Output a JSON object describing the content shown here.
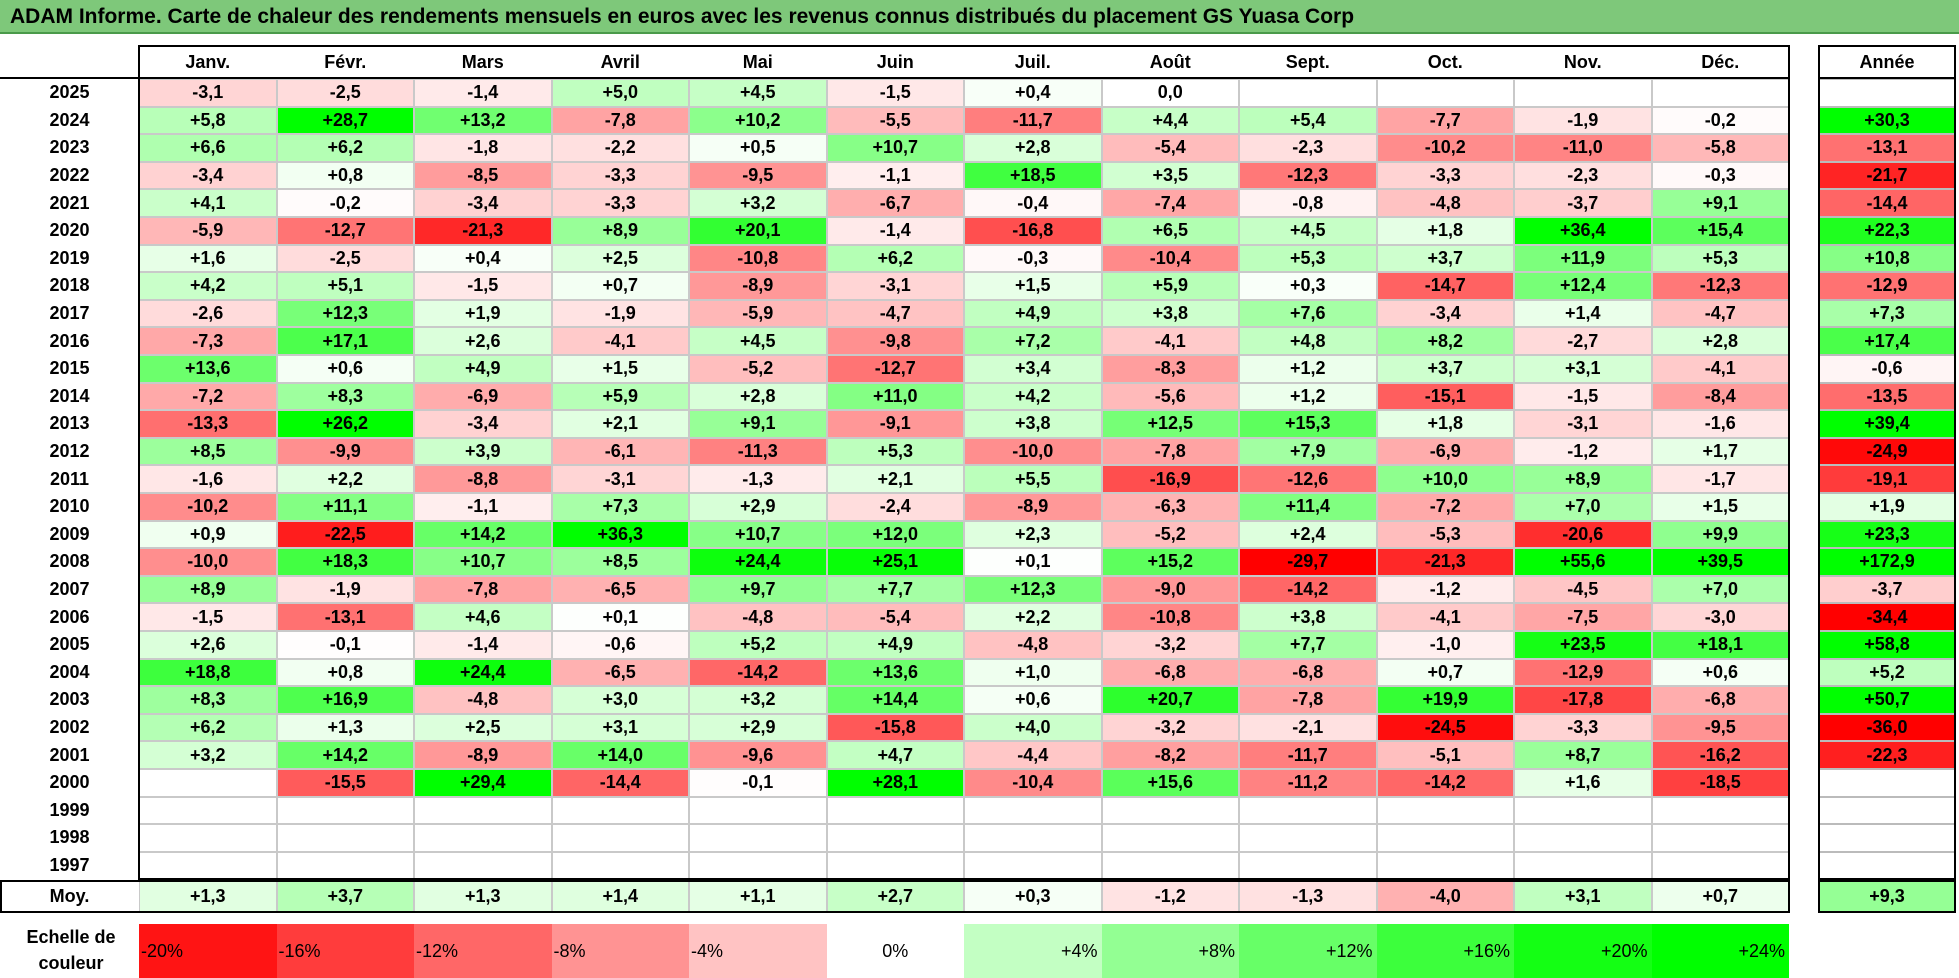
{
  "title": "ADAM Informe. Carte de chaleur des rendements mensuels en euros avec les revenus connus distribués du placement GS Yuasa Corp",
  "chart_data": {
    "type": "heatmap",
    "columns": [
      "Janv.",
      "Févr.",
      "Mars",
      "Avril",
      "Mai",
      "Juin",
      "Juil.",
      "Août",
      "Sept.",
      "Oct.",
      "Nov.",
      "Déc."
    ],
    "annual_header": "Année",
    "average_label": "Moy.",
    "rows": [
      {
        "year": "2025",
        "values": [
          "-3,1",
          "-2,5",
          "-1,4",
          "+5,0",
          "+4,5",
          "-1,5",
          "+0,4",
          "0,0",
          "",
          "",
          "",
          ""
        ],
        "annual": ""
      },
      {
        "year": "2024",
        "values": [
          "+5,8",
          "+28,7",
          "+13,2",
          "-7,8",
          "+10,2",
          "-5,5",
          "-11,7",
          "+4,4",
          "+5,4",
          "-7,7",
          "-1,9",
          "-0,2"
        ],
        "annual": "+30,3"
      },
      {
        "year": "2023",
        "values": [
          "+6,6",
          "+6,2",
          "-1,8",
          "-2,2",
          "+0,5",
          "+10,7",
          "+2,8",
          "-5,4",
          "-2,3",
          "-10,2",
          "-11,0",
          "-5,8"
        ],
        "annual": "-13,1"
      },
      {
        "year": "2022",
        "values": [
          "-3,4",
          "+0,8",
          "-8,5",
          "-3,3",
          "-9,5",
          "-1,1",
          "+18,5",
          "+3,5",
          "-12,3",
          "-3,3",
          "-2,3",
          "-0,3"
        ],
        "annual": "-21,7"
      },
      {
        "year": "2021",
        "values": [
          "+4,1",
          "-0,2",
          "-3,4",
          "-3,3",
          "+3,2",
          "-6,7",
          "-0,4",
          "-7,4",
          "-0,8",
          "-4,8",
          "-3,7",
          "+9,1"
        ],
        "annual": "-14,4"
      },
      {
        "year": "2020",
        "values": [
          "-5,9",
          "-12,7",
          "-21,3",
          "+8,9",
          "+20,1",
          "-1,4",
          "-16,8",
          "+6,5",
          "+4,5",
          "+1,8",
          "+36,4",
          "+15,4"
        ],
        "annual": "+22,3"
      },
      {
        "year": "2019",
        "values": [
          "+1,6",
          "-2,5",
          "+0,4",
          "+2,5",
          "-10,8",
          "+6,2",
          "-0,3",
          "-10,4",
          "+5,3",
          "+3,7",
          "+11,9",
          "+5,3"
        ],
        "annual": "+10,8"
      },
      {
        "year": "2018",
        "values": [
          "+4,2",
          "+5,1",
          "-1,5",
          "+0,7",
          "-8,9",
          "-3,1",
          "+1,5",
          "+5,9",
          "+0,3",
          "-14,7",
          "+12,4",
          "-12,3"
        ],
        "annual": "-12,9"
      },
      {
        "year": "2017",
        "values": [
          "-2,6",
          "+12,3",
          "+1,9",
          "-1,9",
          "-5,9",
          "-4,7",
          "+4,9",
          "+3,8",
          "+7,6",
          "-3,4",
          "+1,4",
          "-4,7"
        ],
        "annual": "+7,3"
      },
      {
        "year": "2016",
        "values": [
          "-7,3",
          "+17,1",
          "+2,6",
          "-4,1",
          "+4,5",
          "-9,8",
          "+7,2",
          "-4,1",
          "+4,8",
          "+8,2",
          "-2,7",
          "+2,8"
        ],
        "annual": "+17,4"
      },
      {
        "year": "2015",
        "values": [
          "+13,6",
          "+0,6",
          "+4,9",
          "+1,5",
          "-5,2",
          "-12,7",
          "+3,4",
          "-8,3",
          "+1,2",
          "+3,7",
          "+3,1",
          "-4,1"
        ],
        "annual": "-0,6"
      },
      {
        "year": "2014",
        "values": [
          "-7,2",
          "+8,3",
          "-6,9",
          "+5,9",
          "+2,8",
          "+11,0",
          "+4,2",
          "-5,6",
          "+1,2",
          "-15,1",
          "-1,5",
          "-8,4"
        ],
        "annual": "-13,5"
      },
      {
        "year": "2013",
        "values": [
          "-13,3",
          "+26,2",
          "-3,4",
          "+2,1",
          "+9,1",
          "-9,1",
          "+3,8",
          "+12,5",
          "+15,3",
          "+1,8",
          "-3,1",
          "-1,6"
        ],
        "annual": "+39,4"
      },
      {
        "year": "2012",
        "values": [
          "+8,5",
          "-9,9",
          "+3,9",
          "-6,1",
          "-11,3",
          "+5,3",
          "-10,0",
          "-7,8",
          "+7,9",
          "-6,9",
          "-1,2",
          "+1,7"
        ],
        "annual": "-24,9"
      },
      {
        "year": "2011",
        "values": [
          "-1,6",
          "+2,2",
          "-8,8",
          "-3,1",
          "-1,3",
          "+2,1",
          "+5,5",
          "-16,9",
          "-12,6",
          "+10,0",
          "+8,9",
          "-1,7"
        ],
        "annual": "-19,1"
      },
      {
        "year": "2010",
        "values": [
          "-10,2",
          "+11,1",
          "-1,1",
          "+7,3",
          "+2,9",
          "-2,4",
          "-8,9",
          "-6,3",
          "+11,4",
          "-7,2",
          "+7,0",
          "+1,5"
        ],
        "annual": "+1,9"
      },
      {
        "year": "2009",
        "values": [
          "+0,9",
          "-22,5",
          "+14,2",
          "+36,3",
          "+10,7",
          "+12,0",
          "+2,3",
          "-5,2",
          "+2,4",
          "-5,3",
          "-20,6",
          "+9,9"
        ],
        "annual": "+23,3"
      },
      {
        "year": "2008",
        "values": [
          "-10,0",
          "+18,3",
          "+10,7",
          "+8,5",
          "+24,4",
          "+25,1",
          "+0,1",
          "+15,2",
          "-29,7",
          "-21,3",
          "+55,6",
          "+39,5"
        ],
        "annual": "+172,9"
      },
      {
        "year": "2007",
        "values": [
          "+8,9",
          "-1,9",
          "-7,8",
          "-6,5",
          "+9,7",
          "+7,7",
          "+12,3",
          "-9,0",
          "-14,2",
          "-1,2",
          "-4,5",
          "+7,0"
        ],
        "annual": "-3,7"
      },
      {
        "year": "2006",
        "values": [
          "-1,5",
          "-13,1",
          "+4,6",
          "+0,1",
          "-4,8",
          "-5,4",
          "+2,2",
          "-10,8",
          "+3,8",
          "-4,1",
          "-7,5",
          "-3,0"
        ],
        "annual": "-34,4"
      },
      {
        "year": "2005",
        "values": [
          "+2,6",
          "-0,1",
          "-1,4",
          "-0,6",
          "+5,2",
          "+4,9",
          "-4,8",
          "-3,2",
          "+7,7",
          "-1,0",
          "+23,5",
          "+18,1"
        ],
        "annual": "+58,8"
      },
      {
        "year": "2004",
        "values": [
          "+18,8",
          "+0,8",
          "+24,4",
          "-6,5",
          "-14,2",
          "+13,6",
          "+1,0",
          "-6,8",
          "-6,8",
          "+0,7",
          "-12,9",
          "+0,6"
        ],
        "annual": "+5,2"
      },
      {
        "year": "2003",
        "values": [
          "+8,3",
          "+16,9",
          "-4,8",
          "+3,0",
          "+3,2",
          "+14,4",
          "+0,6",
          "+20,7",
          "-7,8",
          "+19,9",
          "-17,8",
          "-6,8"
        ],
        "annual": "+50,7"
      },
      {
        "year": "2002",
        "values": [
          "+6,2",
          "+1,3",
          "+2,5",
          "+3,1",
          "+2,9",
          "-15,8",
          "+4,0",
          "-3,2",
          "-2,1",
          "-24,5",
          "-3,3",
          "-9,5"
        ],
        "annual": "-36,0"
      },
      {
        "year": "2001",
        "values": [
          "+3,2",
          "+14,2",
          "-8,9",
          "+14,0",
          "-9,6",
          "+4,7",
          "-4,4",
          "-8,2",
          "-11,7",
          "-5,1",
          "+8,7",
          "-16,2"
        ],
        "annual": "-22,3"
      },
      {
        "year": "2000",
        "values": [
          "",
          "-15,5",
          "+29,4",
          "-14,4",
          "-0,1",
          "+28,1",
          "-10,4",
          "+15,6",
          "-11,2",
          "-14,2",
          "+1,6",
          "-18,5"
        ],
        "annual": ""
      },
      {
        "year": "1999",
        "values": [
          "",
          "",
          "",
          "",
          "",
          "",
          "",
          "",
          "",
          "",
          "",
          ""
        ],
        "annual": ""
      },
      {
        "year": "1998",
        "values": [
          "",
          "",
          "",
          "",
          "",
          "",
          "",
          "",
          "",
          "",
          "",
          ""
        ],
        "annual": ""
      },
      {
        "year": "1997",
        "values": [
          "",
          "",
          "",
          "",
          "",
          "",
          "",
          "",
          "",
          "",
          "",
          ""
        ],
        "annual": ""
      }
    ],
    "average": {
      "values": [
        "+1,3",
        "+3,7",
        "+1,3",
        "+1,4",
        "+1,1",
        "+2,7",
        "+0,3",
        "-1,2",
        "-1,3",
        "-4,0",
        "+3,1",
        "+0,7"
      ],
      "annual": "+9,3"
    },
    "scale_label": "Echelle de couleur",
    "scale": [
      "-20%",
      "-16%",
      "-12%",
      "-8%",
      "-4%",
      "0%",
      "+4%",
      "+8%",
      "+12%",
      "+16%",
      "+20%",
      "+24%"
    ],
    "colors": {
      "neg_max": "#ff0000",
      "pos_max": "#00ff00",
      "neutral": "#ffffff",
      "title_bg": "#7ec87a"
    }
  }
}
